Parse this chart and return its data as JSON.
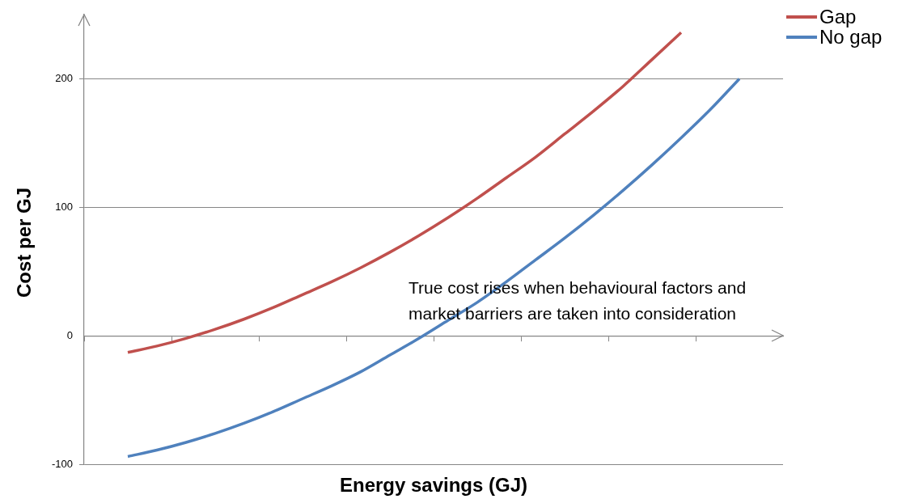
{
  "chart_data": {
    "type": "line",
    "xlabel": "Energy savings (GJ)",
    "ylabel": "Cost per GJ",
    "categories": [
      null,
      null,
      null,
      null,
      null,
      null,
      null,
      null,
      null,
      null,
      null,
      null,
      null,
      null,
      null,
      null,
      null,
      null,
      null,
      null,
      null,
      null,
      null,
      null
    ],
    "series": [
      {
        "name": "Gap",
        "color": "#c0504d",
        "values": [
          null,
          -13,
          -8,
          -2,
          5,
          13,
          22,
          32,
          42,
          53,
          65,
          78,
          92,
          107,
          123,
          139,
          157,
          175,
          194,
          215,
          236,
          null,
          null,
          null
        ]
      },
      {
        "name": "No gap",
        "color": "#4f81bd",
        "values": [
          null,
          -94,
          -89,
          -83,
          -76,
          -68,
          -59,
          -49,
          -39,
          -28,
          -15,
          -2,
          12,
          26,
          42,
          59,
          76,
          94,
          113,
          133,
          154,
          176,
          200,
          null
        ]
      }
    ],
    "ylim": [
      -100,
      250
    ],
    "yticks": [
      -100,
      0,
      100,
      200
    ],
    "grid": "y",
    "legend": "top right",
    "marker": "none",
    "line_style": "solid",
    "tick_labels": "y",
    "annotations": [
      "True cost rises when behavioural factors and market barriers are taken into consideration"
    ]
  }
}
